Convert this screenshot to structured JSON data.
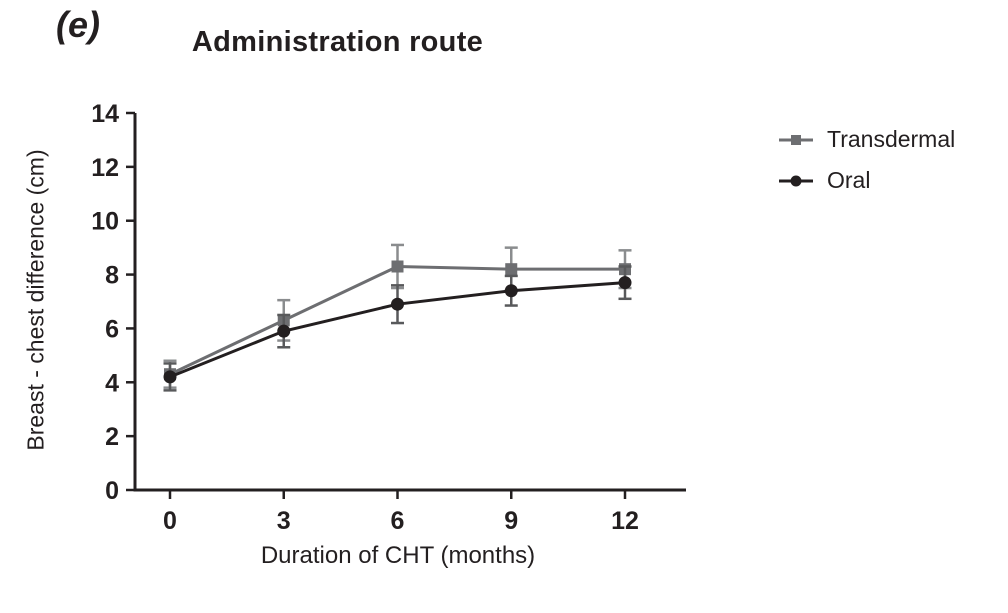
{
  "panel_label": "(e)",
  "title": "Administration route",
  "chart_data": {
    "type": "line",
    "title": "Administration route",
    "x": [
      0,
      3,
      6,
      9,
      12
    ],
    "xticks": [
      0,
      3,
      6,
      9,
      12
    ],
    "xlabel": "Duration of CHT (months)",
    "ylabel": "Breast - chest difference (cm)",
    "ylim": [
      0,
      14
    ],
    "ytick_step": 2,
    "grid": false,
    "legend_position": "right",
    "axis_color": "#231f20",
    "series": [
      {
        "name": "Transdermal",
        "marker": "square",
        "color": "#6d6e71",
        "error_color": "#8a8c8e",
        "values": [
          4.3,
          6.3,
          8.3,
          8.2,
          8.2
        ],
        "errors": [
          0.5,
          0.75,
          0.8,
          0.8,
          0.7
        ]
      },
      {
        "name": "Oral",
        "marker": "circle",
        "color": "#231f20",
        "error_color": "#58595b",
        "values": [
          4.2,
          5.9,
          6.9,
          7.4,
          7.7
        ],
        "errors": [
          0.5,
          0.6,
          0.7,
          0.55,
          0.6
        ]
      }
    ]
  }
}
